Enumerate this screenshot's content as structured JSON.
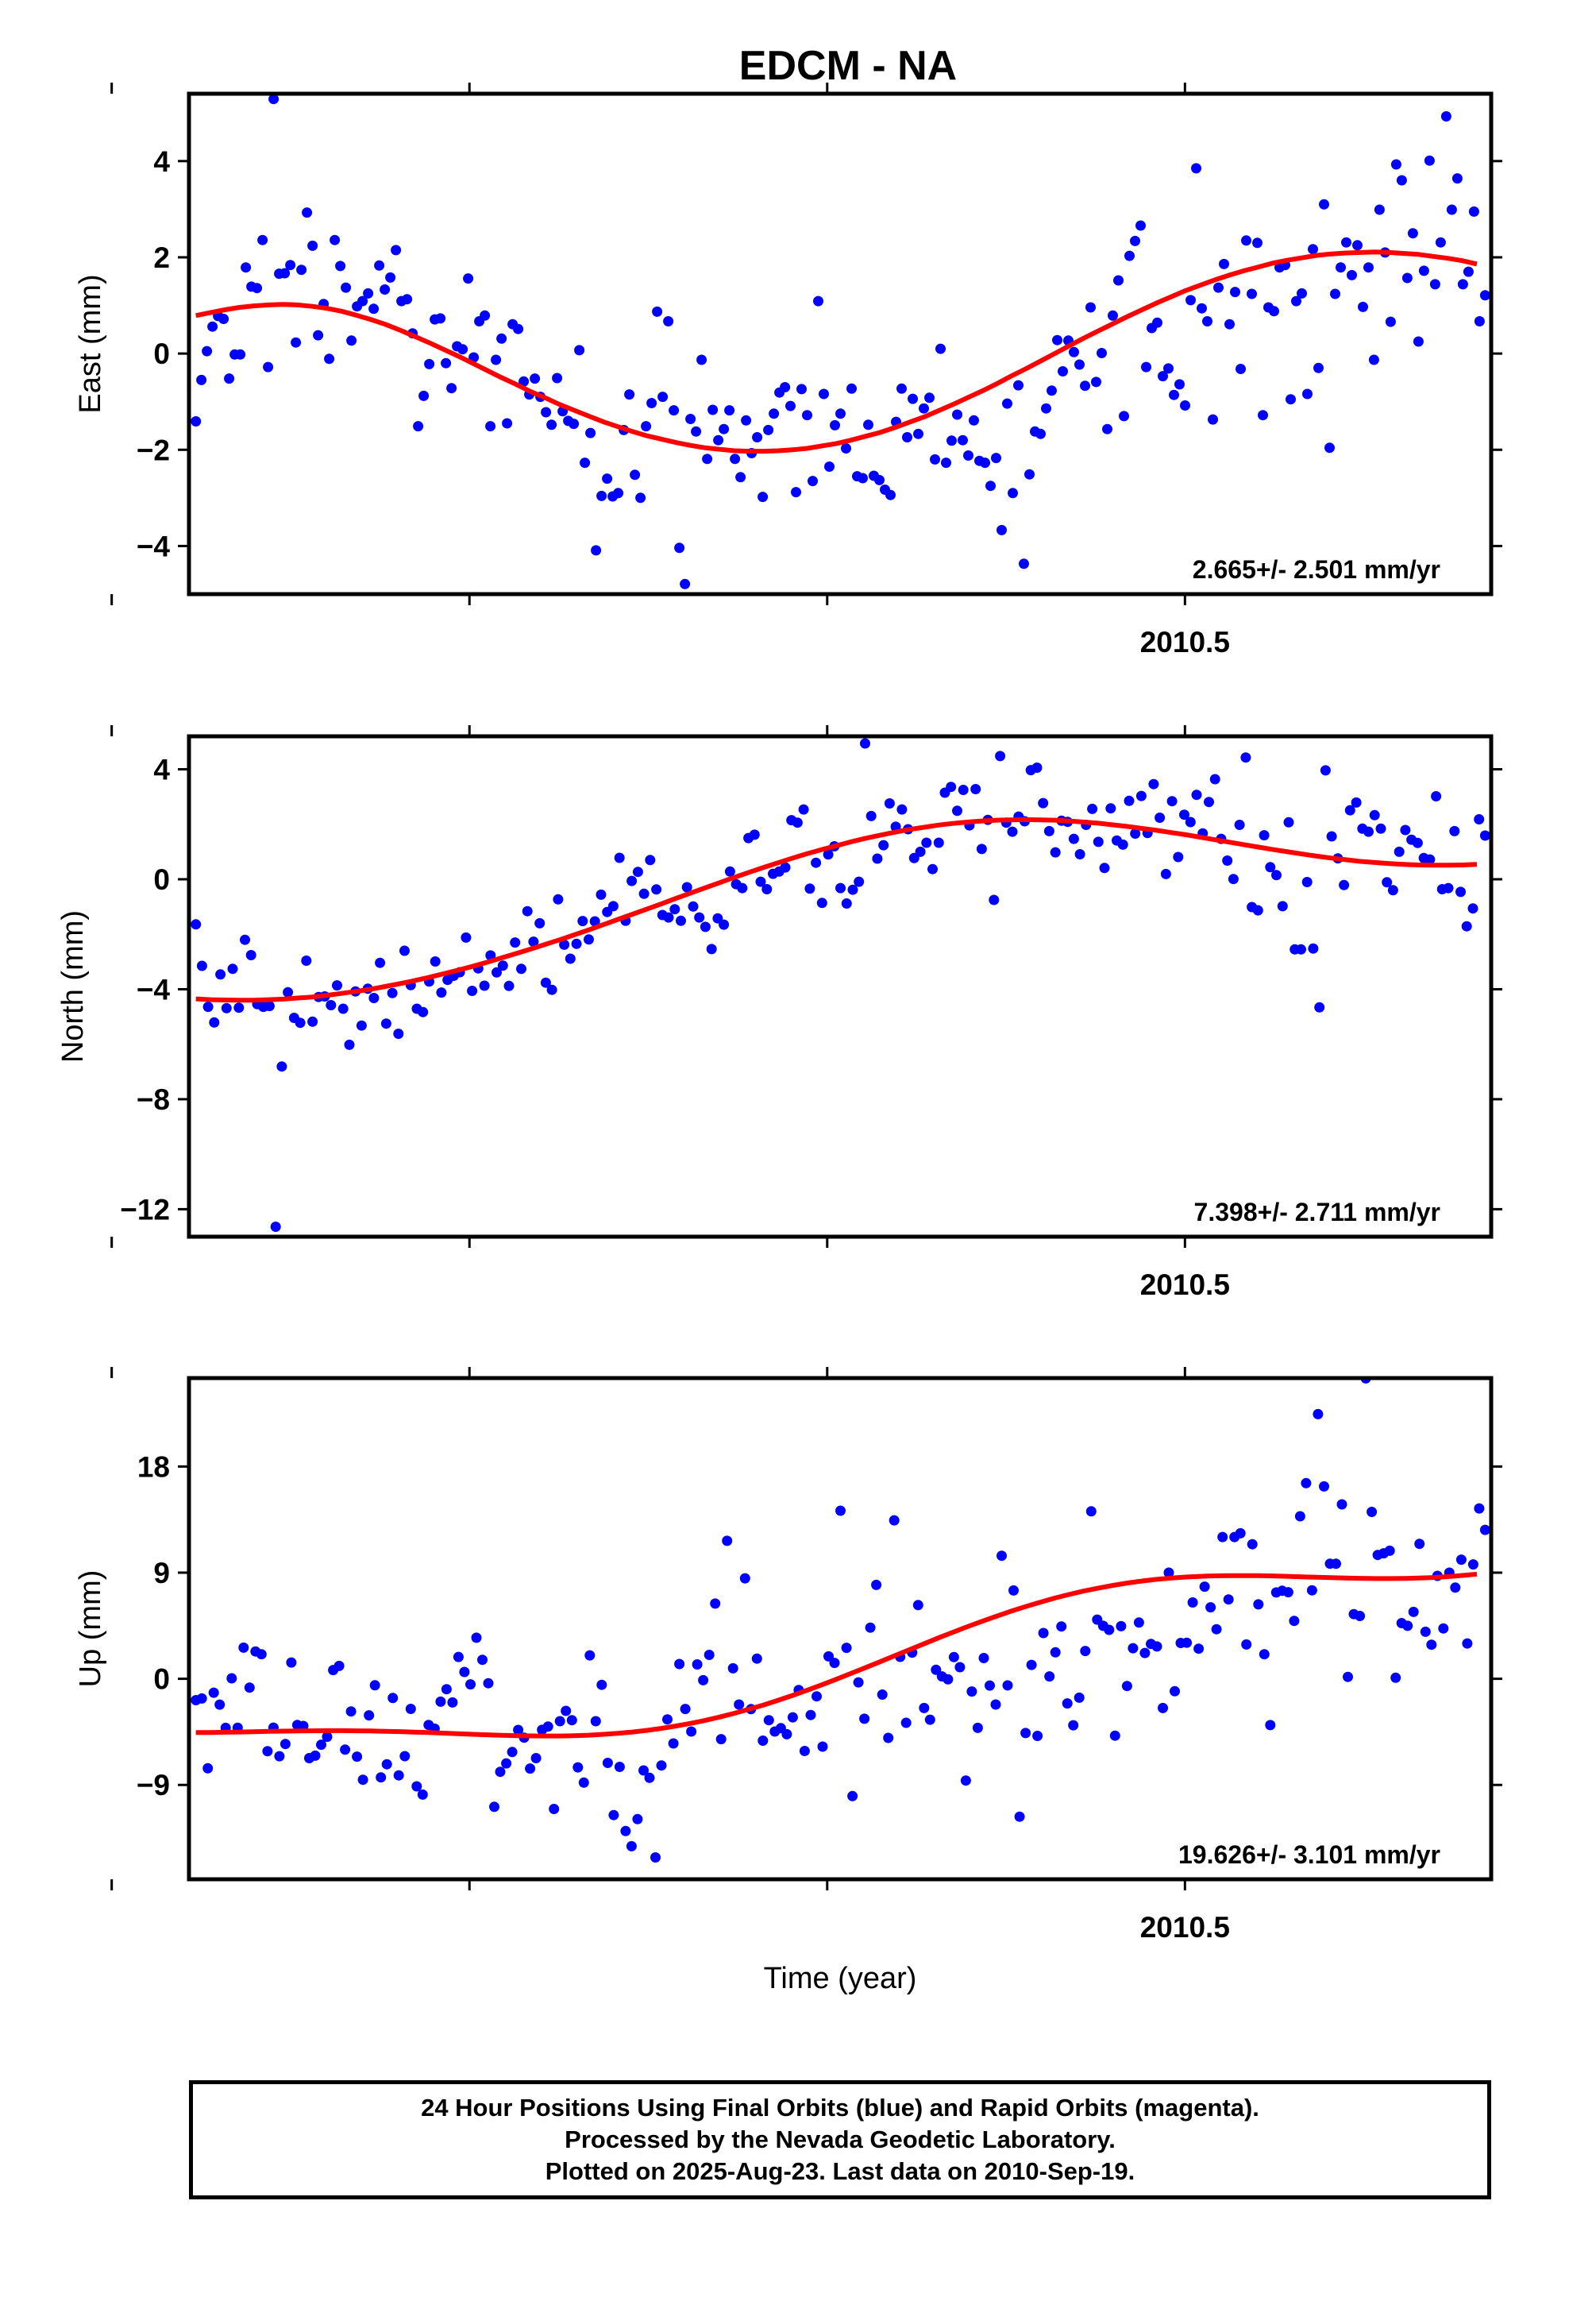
{
  "title": "EDCM - NA",
  "colors": {
    "final_orbits": "#0000ff",
    "model_fit": "#ff0000",
    "frame": "#000000"
  },
  "caption": {
    "line1": "24 Hour Positions Using Final Orbits (blue) and Rapid Orbits (magenta).",
    "line2": "Processed by the Nevada Geodetic Laboratory.",
    "line3": "Plotted on 2025-Aug-23. Last data on 2010-Sep-19."
  },
  "chart_data": [
    {
      "type": "scatter",
      "name": "east",
      "ylabel": "East (mm)",
      "xlabel": "",
      "rate_text": "2.665+/- 2.501 mm/yr",
      "xlim": [
        2009.804,
        2010.714
      ],
      "ylim": [
        -5,
        5.4
      ],
      "yticks": [
        4,
        2,
        0,
        -2,
        -4
      ],
      "ytick_labels": [
        "4",
        "2",
        "0",
        "−2",
        "−4"
      ],
      "xticks": [
        2009.75,
        2010.0,
        2010.25,
        2010.5
      ],
      "xtick_labels": [
        "",
        "",
        "",
        "2010.5"
      ],
      "y": [
        -1.41,
        -0.55,
        0.05,
        0.56,
        0.78,
        0.72,
        -0.52,
        -0.02,
        -0.02,
        1.79,
        1.39,
        1.36,
        2.36,
        -0.28,
        5.29,
        1.66,
        1.67,
        1.84,
        0.23,
        1.74,
        2.93,
        2.24,
        0.38,
        1.03,
        -0.11,
        2.36,
        1.82,
        1.37,
        0.27,
        0.98,
        1.09,
        1.25,
        0.93,
        1.83,
        1.33,
        1.58,
        2.15,
        1.09,
        1.13,
        0.42,
        -1.51,
        -0.88,
        -0.22,
        0.71,
        0.73,
        -0.2,
        -0.72,
        0.15,
        0.09,
        1.56,
        -0.08,
        0.67,
        0.79,
        -1.51,
        -0.13,
        0.31,
        -1.45,
        0.61,
        0.51,
        -0.58,
        -0.85,
        -0.52,
        -0.9,
        -1.22,
        -1.48,
        -0.51,
        -1.2,
        -1.4,
        -1.46,
        0.07,
        -2.27,
        -1.65,
        -4.09,
        -2.96,
        -2.6,
        -2.97,
        -2.9,
        -1.59,
        -0.85,
        -2.52,
        -3.0,
        -1.51,
        -1.03,
        0.87,
        -0.9,
        0.67,
        -1.18,
        -4.04,
        -4.79,
        -1.36,
        -1.62,
        -0.13,
        -2.19,
        -1.17,
        -1.8,
        -1.57,
        -1.18,
        -2.19,
        -2.57,
        -1.39,
        -2.07,
        -1.74,
        -2.98,
        -1.59,
        -1.25,
        -0.81,
        -0.7,
        -1.09,
        -2.88,
        -0.74,
        -1.28,
        -2.65,
        1.09,
        -0.84,
        -2.35,
        -1.49,
        -1.25,
        -1.97,
        -0.73,
        -2.55,
        -2.59,
        -1.48,
        -2.54,
        -2.63,
        -2.83,
        -2.94,
        -1.42,
        -0.73,
        -1.74,
        -0.94,
        -1.67,
        -1.14,
        -0.92,
        -2.2,
        0.1,
        -2.27,
        -1.81,
        -1.27,
        -1.8,
        -2.12,
        -1.39,
        -2.23,
        -2.27,
        -2.75,
        -2.17,
        -3.67,
        -1.04,
        -2.9,
        -0.66,
        -4.37,
        -2.51,
        -1.62,
        -1.67,
        -1.14,
        -0.77,
        0.28,
        -0.37,
        0.27,
        0.03,
        -0.23,
        -0.67,
        0.96,
        -0.59,
        0.01,
        -1.57,
        0.79,
        1.52,
        -1.3,
        2.03,
        2.34,
        2.66,
        -0.28,
        0.53,
        0.64,
        -0.47,
        -0.31,
        -0.86,
        -0.64,
        -1.08,
        1.11,
        3.85,
        0.94,
        0.67,
        -1.37,
        1.37,
        1.86,
        0.61,
        1.28,
        -0.32,
        2.35,
        1.24,
        2.3,
        -1.28,
        0.96,
        0.88,
        1.79,
        1.84,
        -0.95,
        1.09,
        1.25,
        -0.84,
        2.17,
        -0.3,
        3.1,
        -1.96,
        1.24,
        1.79,
        2.31,
        1.63,
        2.25,
        0.97,
        1.79,
        -0.13,
        2.99,
        2.1,
        0.66,
        3.93,
        3.6,
        1.57,
        2.5,
        0.25,
        1.72,
        4.01,
        1.44,
        2.31,
        4.93,
        2.99,
        3.64,
        1.44,
        1.7,
        2.95,
        0.67,
        1.21
      ],
      "fit": [
        0.79,
        0.85,
        0.91,
        0.96,
        0.99,
        1.01,
        1.02,
        1.01,
        0.98,
        0.94,
        0.88,
        0.8,
        0.71,
        0.61,
        0.49,
        0.36,
        0.23,
        0.09,
        -0.05,
        -0.2,
        -0.35,
        -0.5,
        -0.64,
        -0.79,
        -0.92,
        -1.06,
        -1.18,
        -1.3,
        -1.42,
        -1.52,
        -1.62,
        -1.71,
        -1.78,
        -1.85,
        -1.91,
        -1.96,
        -1.99,
        -2.02,
        -2.03,
        -2.03,
        -2.02,
        -2.0,
        -1.97,
        -1.92,
        -1.87,
        -1.8,
        -1.72,
        -1.64,
        -1.54,
        -1.43,
        -1.32,
        -1.19,
        -1.06,
        -0.92,
        -0.78,
        -0.63,
        -0.47,
        -0.32,
        -0.16,
        0.0,
        0.16,
        0.32,
        0.47,
        0.62,
        0.77,
        0.91,
        1.05,
        1.18,
        1.31,
        1.42,
        1.53,
        1.63,
        1.72,
        1.8,
        1.88,
        1.94,
        1.99,
        2.04,
        2.07,
        2.09,
        2.1,
        2.11,
        2.1,
        2.08,
        2.06,
        2.02,
        1.98,
        1.93,
        1.86
      ]
    },
    {
      "type": "scatter",
      "name": "north",
      "ylabel": "North (mm)",
      "xlabel": "",
      "rate_text": "7.398+/- 2.711 mm/yr",
      "xlim": [
        2009.804,
        2010.714
      ],
      "ylim": [
        -13.0,
        5.2
      ],
      "yticks": [
        4,
        0,
        -4,
        -8,
        -12
      ],
      "ytick_labels": [
        "4",
        "0",
        "−4",
        "−8",
        "−12"
      ],
      "xticks": [
        2009.75,
        2010.0,
        2010.25,
        2010.5
      ],
      "xtick_labels": [
        "",
        "",
        "",
        "2010.5"
      ],
      "y": [
        -1.64,
        -3.15,
        -4.64,
        -5.21,
        -3.46,
        -4.69,
        -3.26,
        -4.67,
        -2.2,
        -2.76,
        -4.54,
        -4.64,
        -4.61,
        -12.64,
        -6.81,
        -4.11,
        -5.04,
        -5.22,
        -2.96,
        -5.18,
        -4.28,
        -4.26,
        -4.58,
        -3.86,
        -4.71,
        -6.02,
        -4.08,
        -5.32,
        -3.98,
        -4.32,
        -3.04,
        -5.25,
        -4.14,
        -5.62,
        -2.6,
        -3.85,
        -4.71,
        -4.83,
        -3.72,
        -2.99,
        -4.12,
        -3.66,
        -3.51,
        -3.38,
        -2.12,
        -4.06,
        -3.24,
        -3.87,
        -2.77,
        -3.39,
        -3.14,
        -3.88,
        -2.3,
        -3.26,
        -1.16,
        -2.27,
        -1.6,
        -3.76,
        -4.02,
        -0.73,
        -2.38,
        -2.89,
        -2.35,
        -1.52,
        -2.19,
        -1.53,
        -0.56,
        -1.19,
        -0.98,
        0.78,
        -1.51,
        -0.06,
        0.27,
        -0.53,
        0.7,
        -0.37,
        -1.3,
        -1.39,
        -1.09,
        -1.51,
        -0.29,
        -0.99,
        -1.39,
        -1.73,
        -2.54,
        -1.42,
        -1.65,
        0.28,
        -0.18,
        -0.32,
        1.5,
        1.62,
        -0.09,
        -0.36,
        0.2,
        0.28,
        0.43,
        2.15,
        2.06,
        2.54,
        -0.34,
        0.6,
        -0.86,
        0.9,
        1.2,
        -0.32,
        -0.88,
        -0.38,
        -0.09,
        4.94,
        2.3,
        0.75,
        1.24,
        2.76,
        1.91,
        2.54,
        1.82,
        0.77,
        1.0,
        1.33,
        0.37,
        1.33,
        3.15,
        3.36,
        2.49,
        3.25,
        1.96,
        3.28,
        1.1,
        2.16,
        -0.75,
        4.48,
        2.06,
        1.73,
        2.28,
        2.11,
        3.97,
        4.06,
        2.77,
        1.75,
        0.98,
        2.13,
        2.09,
        1.47,
        0.91,
        1.98,
        2.56,
        1.36,
        0.41,
        2.58,
        1.41,
        1.26,
        2.85,
        1.66,
        3.03,
        1.68,
        3.46,
        2.24,
        0.19,
        2.84,
        0.81,
        2.35,
        2.08,
        3.07,
        1.67,
        2.81,
        3.64,
        1.47,
        0.68,
        0.01,
        1.98,
        4.43,
        -1.01,
        -1.13,
        1.6,
        0.44,
        0.15,
        -0.98,
        2.07,
        -2.55,
        -2.55,
        -0.1,
        -2.52,
        -4.66,
        3.96,
        1.56,
        0.76,
        -0.21,
        2.51,
        2.79,
        1.84,
        1.73,
        2.33,
        1.84,
        -0.11,
        -0.4,
        1.0,
        1.79,
        1.44,
        1.32,
        0.77,
        0.72,
        3.02,
        -0.36,
        -0.32,
        1.75,
        -0.46,
        -1.71,
        -1.06,
        2.18,
        1.59
      ],
      "fit": [
        -4.35,
        -4.38,
        -4.39,
        -4.4,
        -4.4,
        -4.38,
        -4.36,
        -4.32,
        -4.28,
        -4.22,
        -4.15,
        -4.08,
        -4.0,
        -3.9,
        -3.8,
        -3.69,
        -3.57,
        -3.44,
        -3.31,
        -3.17,
        -3.02,
        -2.86,
        -2.7,
        -2.54,
        -2.37,
        -2.2,
        -2.02,
        -1.84,
        -1.65,
        -1.46,
        -1.27,
        -1.08,
        -0.89,
        -0.69,
        -0.5,
        -0.31,
        -0.12,
        0.07,
        0.25,
        0.43,
        0.6,
        0.77,
        0.93,
        1.08,
        1.22,
        1.36,
        1.49,
        1.6,
        1.71,
        1.81,
        1.89,
        1.97,
        2.03,
        2.08,
        2.12,
        2.15,
        2.16,
        2.17,
        2.16,
        2.15,
        2.12,
        2.08,
        2.04,
        1.98,
        1.92,
        1.85,
        1.78,
        1.7,
        1.62,
        1.53,
        1.44,
        1.35,
        1.26,
        1.17,
        1.08,
        1.0,
        0.92,
        0.84,
        0.77,
        0.71,
        0.65,
        0.61,
        0.57,
        0.54,
        0.52,
        0.51,
        0.51,
        0.52,
        0.54
      ]
    },
    {
      "type": "scatter",
      "name": "up",
      "ylabel": "Up (mm)",
      "xlabel": "Time (year)",
      "rate_text": "19.626+/- 3.101 mm/yr",
      "xlim": [
        2009.804,
        2010.714
      ],
      "ylim": [
        -17.0,
        25.5
      ],
      "yticks": [
        18,
        9,
        0,
        -9
      ],
      "ytick_labels": [
        "18",
        "9",
        "0",
        "−9"
      ],
      "xticks": [
        2009.75,
        2010.0,
        2010.25,
        2010.5
      ],
      "xtick_labels": [
        "",
        "",
        "",
        "2010.5"
      ],
      "y": [
        -1.81,
        -1.67,
        -7.59,
        -1.18,
        -2.19,
        -4.16,
        0.04,
        -4.15,
        2.64,
        -0.75,
        2.32,
        2.08,
        -6.14,
        -4.14,
        -6.57,
        -5.53,
        1.38,
        -3.92,
        -4.0,
        -6.73,
        -6.52,
        -5.59,
        -4.92,
        0.74,
        1.09,
        -6.01,
        -2.77,
        -6.6,
        -8.56,
        -3.1,
        -0.55,
        -8.36,
        -7.25,
        -1.63,
        -8.19,
        -6.56,
        -2.55,
        -9.12,
        -9.82,
        -3.91,
        -4.23,
        -1.94,
        -0.88,
        -2.01,
        1.85,
        0.58,
        -0.47,
        3.48,
        1.61,
        -0.38,
        -10.86,
        -7.89,
        -7.17,
        -6.21,
        -4.34,
        -4.99,
        -7.61,
        -6.73,
        -4.33,
        -4.05,
        -11.04,
        -3.6,
        -2.72,
        -3.51,
        -7.51,
        -8.8,
        1.99,
        -3.6,
        -0.51,
        -7.13,
        -11.56,
        -7.47,
        -12.91,
        -14.2,
        -11.9,
        -7.77,
        -8.4,
        -15.15,
        -7.35,
        -3.44,
        -5.48,
        1.25,
        -2.56,
        -4.47,
        1.22,
        -0.12,
        2.03,
        6.38,
        -5.12,
        11.7,
        0.89,
        -2.18,
        8.52,
        -2.57,
        1.71,
        -5.25,
        -3.51,
        -4.47,
        -4.19,
        -4.7,
        -3.27,
        -0.95,
        -6.12,
        -3.07,
        -1.49,
        -5.75,
        1.9,
        1.35,
        14.25,
        2.63,
        -9.95,
        -0.3,
        -3.39,
        4.34,
        7.96,
        -1.34,
        -5.01,
        13.44,
        1.86,
        -3.73,
        2.22,
        6.25,
        -2.48,
        -3.47,
        0.76,
        0.2,
        -0.05,
        1.84,
        0.98,
        -8.63,
        -1.08,
        -4.16,
        1.76,
        -0.57,
        -2.18,
        10.43,
        -0.56,
        7.49,
        -11.69,
        -4.6,
        1.18,
        -4.84,
        3.88,
        0.2,
        2.24,
        4.44,
        -2.09,
        -3.94,
        -1.6,
        2.36,
        14.2,
        5.02,
        4.49,
        4.15,
        -4.82,
        4.46,
        -0.61,
        2.59,
        4.77,
        2.19,
        2.96,
        2.74,
        -2.48,
        9.0,
        -1.06,
        3.04,
        3.06,
        6.47,
        2.55,
        7.81,
        6.06,
        4.2,
        12.02,
        6.73,
        12.02,
        12.34,
        2.91,
        11.41,
        6.31,
        2.08,
        -3.93,
        7.32,
        7.46,
        7.34,
        4.91,
        13.78,
        16.59,
        7.5,
        22.44,
        16.31,
        9.76,
        9.75,
        14.79,
        0.16,
        5.48,
        5.33,
        25.47,
        14.15,
        10.5,
        10.64,
        10.86,
        0.09,
        4.72,
        4.49,
        5.67,
        11.44,
        3.99,
        2.89,
        8.73,
        4.27,
        9.0,
        7.73,
        10.1,
        3.0,
        9.7,
        14.45,
        12.63
      ],
      "fit": [
        -4.56,
        -4.55,
        -4.53,
        -4.51,
        -4.49,
        -4.46,
        -4.44,
        -4.42,
        -4.41,
        -4.4,
        -4.4,
        -4.41,
        -4.42,
        -4.45,
        -4.48,
        -4.52,
        -4.56,
        -4.61,
        -4.66,
        -4.71,
        -4.75,
        -4.79,
        -4.82,
        -4.84,
        -4.85,
        -4.85,
        -4.82,
        -4.78,
        -4.71,
        -4.62,
        -4.51,
        -4.37,
        -4.2,
        -4.0,
        -3.78,
        -3.52,
        -3.24,
        -2.92,
        -2.58,
        -2.22,
        -1.82,
        -1.41,
        -0.97,
        -0.51,
        -0.04,
        0.45,
        0.94,
        1.44,
        1.95,
        2.46,
        2.96,
        3.46,
        3.94,
        4.42,
        4.87,
        5.31,
        5.73,
        6.12,
        6.49,
        6.84,
        7.15,
        7.44,
        7.69,
        7.92,
        8.12,
        8.29,
        8.43,
        8.54,
        8.63,
        8.69,
        8.73,
        8.75,
        8.75,
        8.74,
        8.72,
        8.69,
        8.65,
        8.61,
        8.58,
        8.55,
        8.52,
        8.5,
        8.5,
        8.51,
        8.54,
        8.59,
        8.66,
        8.76,
        8.88
      ]
    }
  ]
}
